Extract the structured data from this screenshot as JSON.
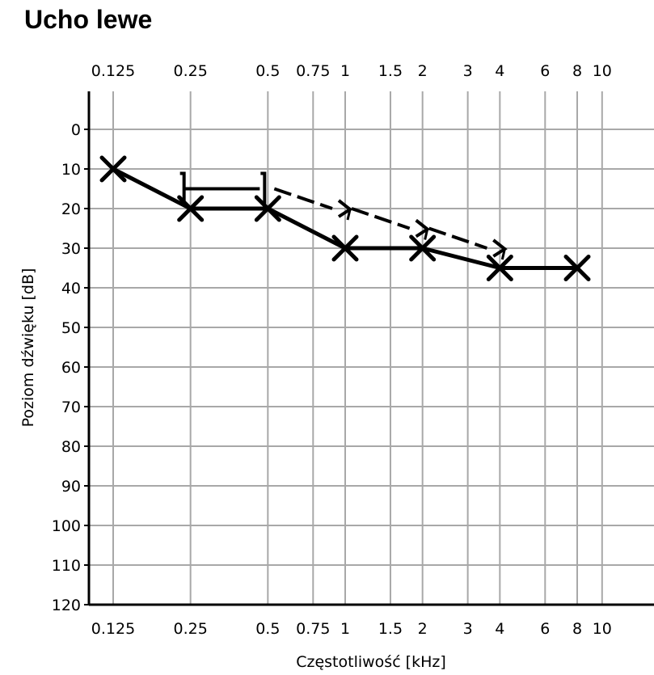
{
  "chart_data": {
    "type": "line",
    "title": "Ucho lewe",
    "xlabel": "Częstotliwość [kHz]",
    "ylabel": "Poziom dźwięku [dB]",
    "x_scale": "log",
    "xlim": [
      0.1,
      14
    ],
    "ylim": [
      120,
      -20
    ],
    "y_inverted": true,
    "grid": true,
    "x_ticks": [
      0.125,
      0.25,
      0.5,
      0.75,
      1,
      1.5,
      2,
      3,
      4,
      6,
      8,
      10
    ],
    "x_tick_labels": [
      "0.125",
      "0.25",
      "0.5",
      "0.75",
      "1",
      "1.5",
      "2",
      "3",
      "4",
      "6",
      "8",
      "10"
    ],
    "y_ticks": [
      0,
      10,
      20,
      30,
      40,
      50,
      60,
      70,
      80,
      90,
      100,
      110,
      120
    ],
    "y_tick_labels": [
      "0",
      "10",
      "20",
      "30",
      "40",
      "50",
      "60",
      "70",
      "80",
      "90",
      "100",
      "110",
      "120"
    ],
    "series": [
      {
        "symbol": "x",
        "line": "solid",
        "color": "#000000",
        "x": [
          0.125,
          0.25,
          0.5,
          1,
          2,
          4,
          8
        ],
        "y": [
          10,
          20,
          20,
          30,
          30,
          35,
          35
        ]
      },
      {
        "symbol": "bracket-then-arrow",
        "line": "dashed",
        "color": "#000000",
        "x": [
          0.25,
          0.5,
          1,
          2,
          4
        ],
        "y": [
          15,
          15,
          20,
          25,
          30
        ]
      }
    ]
  }
}
